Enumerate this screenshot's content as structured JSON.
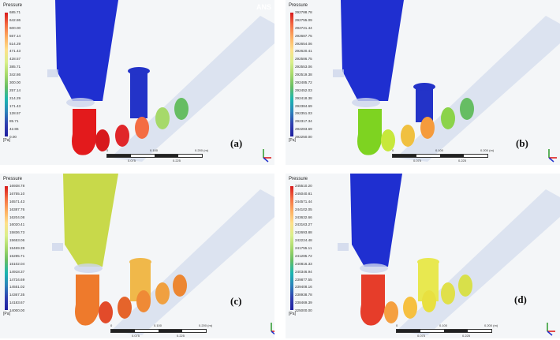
{
  "panels": [
    {
      "letter": "(a)",
      "legend_title": "Pressure",
      "unit": "[Pa]",
      "ticks": [
        "685.71",
        "642.86",
        "600.00",
        "557.14",
        "514.29",
        "471.43",
        "428.57",
        "385.71",
        "342.86",
        "300.00",
        "257.14",
        "214.29",
        "171.43",
        "128.57",
        "85.71",
        "42.86",
        "0.00"
      ],
      "scale_labels": [
        "0",
        "0.100",
        "0.200 (m)",
        "0.075",
        "0.225"
      ],
      "watermark": "ANS",
      "colors": {
        "vessel": "#1f2fd0",
        "stopper": "#1f2fd0",
        "elbow": "#e31a1c",
        "segments": [
          "#d7191c",
          "#e0262a",
          "#f46d43",
          "#a6d96a",
          "#66bd63"
        ],
        "riser": "#2333c8"
      }
    },
    {
      "letter": "(b)",
      "legend_title": "Pressure",
      "unit": "[Pa]",
      "ticks": [
        "292788.78",
        "292755.09",
        "292721.44",
        "292687.75",
        "292654.06",
        "292620.41",
        "292586.75",
        "292553.06",
        "292519.38",
        "292485.72",
        "292452.03",
        "292418.38",
        "292384.69",
        "292351.03",
        "292317.34",
        "292283.69",
        "292250.00"
      ],
      "scale_labels": [
        "0",
        "0.100",
        "0.200 (m)",
        "0.075",
        "0.225"
      ],
      "watermark": "",
      "colors": {
        "vessel": "#1f2fd0",
        "stopper": "#1f2fd0",
        "elbow": "#7ed321",
        "segments": [
          "#c7e83b",
          "#f0c040",
          "#f59b3c",
          "#8bd34a",
          "#66bd63"
        ],
        "riser": "#2333c8"
      }
    },
    {
      "letter": "(c)",
      "legend_title": "Pressure",
      "unit": "[Pa]",
      "ticks": [
        "16938.78",
        "16755.10",
        "16571.43",
        "16387.76",
        "16204.08",
        "16020.41",
        "15836.73",
        "15653.06",
        "15469.39",
        "15285.71",
        "15102.04",
        "14918.37",
        "14734.69",
        "14551.02",
        "14367.35",
        "14183.67",
        "14000.00"
      ],
      "scale_labels": [
        "0",
        "0.100",
        "0.200 (m)",
        "0.075",
        "0.225"
      ],
      "watermark": "",
      "colors": {
        "vessel": "#c8d94a",
        "stopper": "#b9dc4a",
        "elbow": "#ee7a2c",
        "segments": [
          "#e24b2a",
          "#e5642b",
          "#ef8a36",
          "#f0a040",
          "#ec8632"
        ],
        "riser": "#f0b84a"
      }
    },
    {
      "letter": "(d)",
      "legend_title": "Pressure",
      "unit": "[Pa]",
      "ticks": [
        "245510.20",
        "245040.81",
        "244571.44",
        "244102.05",
        "243632.66",
        "243163.27",
        "242693.88",
        "242224.48",
        "241755.11",
        "241285.72",
        "240816.33",
        "240346.94",
        "239877.55",
        "239408.16",
        "238938.78",
        "238469.39",
        "225000.00"
      ],
      "scale_labels": [
        "0",
        "0.100",
        "0.200 (m)",
        "0.075",
        "0.225"
      ],
      "watermark": "",
      "colors": {
        "vessel": "#1f2fd0",
        "stopper": "#1f2fd0",
        "elbow": "#e63d2a",
        "segments": [
          "#f5a040",
          "#f6c040",
          "#e8e040",
          "#e0e04a",
          "#d8e04a"
        ],
        "riser": "#e8e850"
      }
    }
  ]
}
